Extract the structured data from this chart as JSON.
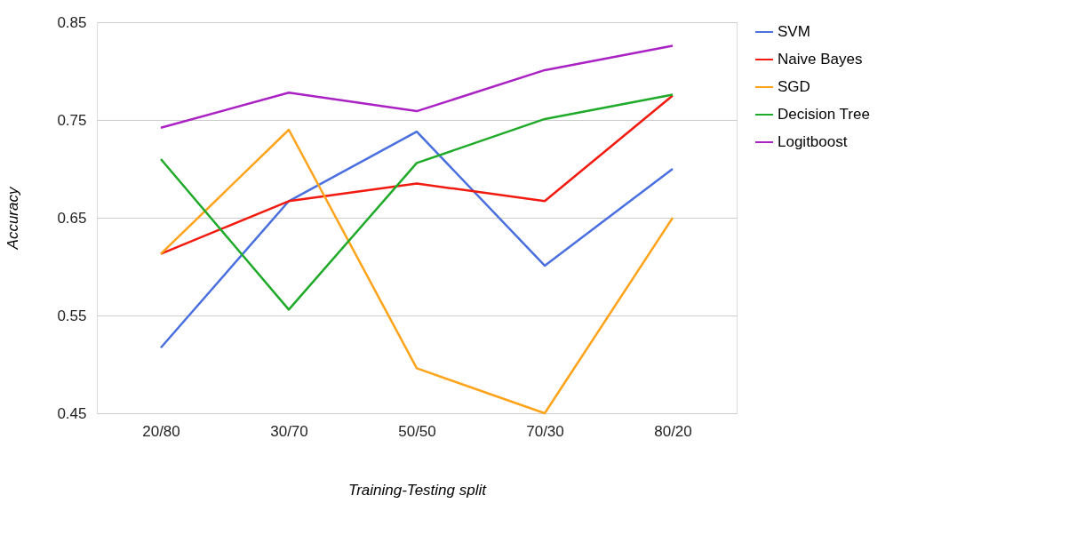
{
  "chart_data": {
    "type": "line",
    "xlabel": "Training-Testing split",
    "ylabel": "Accuracy",
    "categories": [
      "20/80",
      "30/70",
      "50/50",
      "70/30",
      "80/20"
    ],
    "series": [
      {
        "name": "SVM",
        "color": "#4a6fdf",
        "values": [
          0.517,
          0.667,
          0.738,
          0.601,
          0.7
        ]
      },
      {
        "name": "Naive Bayes",
        "color": "#f21a0f",
        "values": [
          0.613,
          0.667,
          0.685,
          0.667,
          0.775
        ]
      },
      {
        "name": "SGD",
        "color": "#ffa31a",
        "values": [
          0.613,
          0.74,
          0.496,
          0.45,
          0.65
        ]
      },
      {
        "name": "Decision Tree",
        "color": "#1faa2a",
        "values": [
          0.71,
          0.556,
          0.706,
          0.751,
          0.776
        ]
      },
      {
        "name": "Logitboost",
        "color": "#aa22c4",
        "values": [
          0.742,
          0.778,
          0.759,
          0.801,
          0.826
        ]
      }
    ],
    "ylim": [
      0.45,
      0.85
    ],
    "yticks": [
      0.45,
      0.55,
      0.65,
      0.75,
      0.85
    ],
    "grid": "y",
    "legend": "top right",
    "marker": "none",
    "line_style": "solid"
  }
}
